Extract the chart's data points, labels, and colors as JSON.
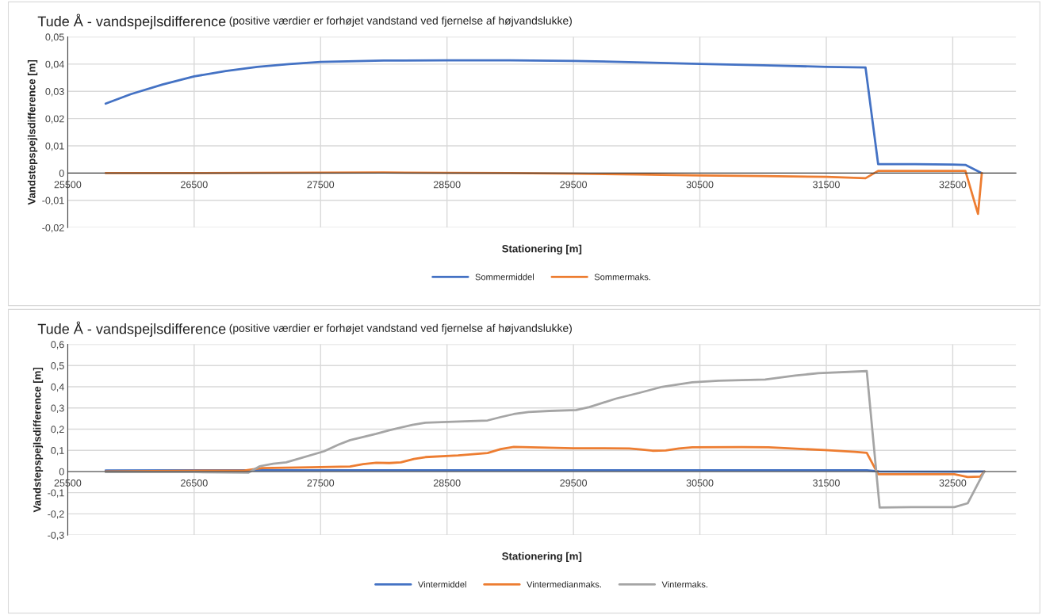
{
  "chart_data": [
    {
      "type": "line",
      "title": "Tude Å - vandspejlsdifference",
      "subtitle": "(positive værdier er forhøjet vandstand ved fjernelse af højvandslukke)",
      "xlabel": "Stationering [m]",
      "ylabel": "Vandstepspejlsdifference [m]",
      "xlim": [
        25500,
        33000
      ],
      "xticks": [
        25500,
        26500,
        27500,
        28500,
        29500,
        30500,
        31500,
        32500
      ],
      "ylim": [
        -0.02,
        0.05
      ],
      "yticks": [
        {
          "value": -0.02,
          "label": "-0,02"
        },
        {
          "value": -0.01,
          "label": "-0,01"
        },
        {
          "value": 0,
          "label": "0"
        },
        {
          "value": 0.01,
          "label": "0,01"
        },
        {
          "value": 0.02,
          "label": "0,02"
        },
        {
          "value": 0.03,
          "label": "0,03"
        },
        {
          "value": 0.04,
          "label": "0,04"
        },
        {
          "value": 0.05,
          "label": "0,05"
        }
      ],
      "grid": true,
      "legend": "bottom",
      "marker": "none",
      "line_style": "solid",
      "series": [
        {
          "name": "Sommermiddel",
          "color": "#4472c4",
          "x": [
            25800,
            26000,
            26250,
            26500,
            26750,
            27000,
            27250,
            27500,
            28000,
            28500,
            29000,
            29500,
            30000,
            30500,
            31000,
            31500,
            31810,
            31910,
            32200,
            32500,
            32600,
            32730
          ],
          "values": [
            0.0255,
            0.029,
            0.0325,
            0.0355,
            0.0375,
            0.039,
            0.04,
            0.0408,
            0.0413,
            0.0414,
            0.0414,
            0.0412,
            0.0407,
            0.0401,
            0.0396,
            0.039,
            0.0388,
            0.0033,
            0.0033,
            0.0031,
            0.003,
            0.0
          ]
        },
        {
          "name": "Sommermaks.",
          "color": "#ed7d31",
          "x": [
            25800,
            26500,
            27000,
            28000,
            28500,
            29000,
            29500,
            30000,
            30500,
            31000,
            31500,
            31810,
            31910,
            32200,
            32600,
            32700,
            32730
          ],
          "values": [
            0.0,
            0.0,
            0.0001,
            0.0002,
            0.0001,
            0.0,
            -0.0002,
            -0.0005,
            -0.0009,
            -0.0011,
            -0.0014,
            -0.0019,
            0.0008,
            0.0008,
            0.0008,
            -0.015,
            0.0
          ]
        }
      ]
    },
    {
      "type": "line",
      "title": "Tude Å - vandspejlsdifference",
      "subtitle": "(positive værdier er forhøjet vandstand ved fjernelse af højvandslukke)",
      "xlabel": "Stationering [m]",
      "ylabel": "Vandstepspejlsdifference [m]",
      "xlim": [
        25500,
        33000
      ],
      "xticks": [
        25500,
        26500,
        27500,
        28500,
        29500,
        30500,
        31500,
        32500
      ],
      "ylim": [
        -0.3,
        0.6
      ],
      "yticks": [
        {
          "value": -0.3,
          "label": "-0,3"
        },
        {
          "value": -0.2,
          "label": "-0,2"
        },
        {
          "value": -0.1,
          "label": "-0,1"
        },
        {
          "value": 0,
          "label": "0"
        },
        {
          "value": 0.1,
          "label": "0,1"
        },
        {
          "value": 0.2,
          "label": "0,2"
        },
        {
          "value": 0.3,
          "label": "0,3"
        },
        {
          "value": 0.4,
          "label": "0,4"
        },
        {
          "value": 0.5,
          "label": "0,5"
        },
        {
          "value": 0.6,
          "label": "0,6"
        }
      ],
      "grid": true,
      "legend": "bottom",
      "marker": "none",
      "line_style": "solid",
      "series": [
        {
          "name": "Vintermiddel",
          "color": "#4472c4",
          "x": [
            25800,
            27000,
            31820,
            31920,
            32500,
            32750
          ],
          "values": [
            0.005,
            0.006,
            0.006,
            0.0,
            -0.001,
            0.0
          ]
        },
        {
          "name": "Vintermedianmaks.",
          "color": "#ed7d31",
          "x": [
            25800,
            26900,
            27034,
            27422,
            27733,
            27837,
            27940,
            28044,
            28135,
            28238,
            28329,
            28588,
            28821,
            28925,
            29028,
            29500,
            29941,
            30033,
            30125,
            30230,
            30335,
            30440,
            30833,
            31043,
            31489,
            31726,
            31820,
            31910,
            32513,
            32618,
            32717,
            32750
          ],
          "values": [
            0.0,
            0.005,
            0.016,
            0.02,
            0.024,
            0.035,
            0.041,
            0.04,
            0.043,
            0.059,
            0.068,
            0.076,
            0.087,
            0.106,
            0.116,
            0.11,
            0.109,
            0.104,
            0.098,
            0.099,
            0.109,
            0.114,
            0.115,
            0.114,
            0.101,
            0.093,
            0.088,
            -0.013,
            -0.013,
            -0.026,
            -0.024,
            0.0
          ]
        },
        {
          "name": "Vintermaks.",
          "color": "#a5a5a5",
          "x": [
            25800,
            26500,
            26930,
            27020,
            27125,
            27228,
            27526,
            27642,
            27733,
            27837,
            27940,
            28044,
            28225,
            28329,
            28458,
            28821,
            28925,
            29028,
            29145,
            29311,
            29521,
            29626,
            29836,
            30020,
            30203,
            30440,
            30650,
            31017,
            31253,
            31437,
            31820,
            31922,
            32172,
            32513,
            32618,
            32750
          ],
          "values": [
            -0.003,
            -0.003,
            -0.005,
            0.025,
            0.037,
            0.043,
            0.095,
            0.127,
            0.148,
            0.163,
            0.178,
            0.195,
            0.22,
            0.23,
            0.233,
            0.241,
            0.257,
            0.271,
            0.281,
            0.286,
            0.29,
            0.304,
            0.344,
            0.371,
            0.4,
            0.421,
            0.429,
            0.434,
            0.453,
            0.464,
            0.474,
            -0.17,
            -0.168,
            -0.168,
            -0.15,
            0.0
          ]
        }
      ]
    }
  ]
}
